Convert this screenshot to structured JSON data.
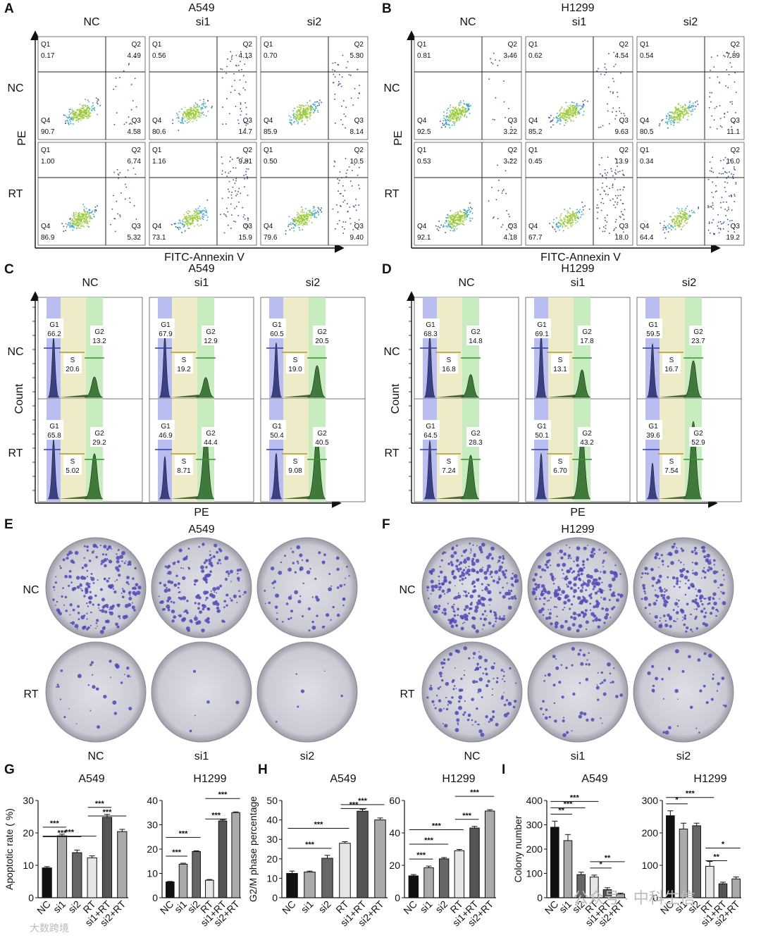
{
  "panel_letters": [
    "A",
    "B",
    "C",
    "D",
    "E",
    "F",
    "G",
    "H",
    "I"
  ],
  "cols": [
    "NC",
    "si1",
    "si2"
  ],
  "rows": [
    "NC",
    "RT"
  ],
  "cell_lines": [
    "A549",
    "H1299"
  ],
  "flow": {
    "x_label": "FITC-Annexin V",
    "y_label": "PE",
    "quadrant_names": [
      "Q1",
      "Q2",
      "Q3",
      "Q4"
    ],
    "A549": [
      [
        [
          "0.17",
          "4.49",
          "4.58",
          "90.7"
        ],
        [
          "0.56",
          "4.13",
          "14.7",
          "80.6"
        ],
        [
          "0.70",
          "5.30",
          "8.14",
          "85.9"
        ]
      ],
      [
        [
          "1.00",
          "6.74",
          "5.32",
          "86.9"
        ],
        [
          "1.16",
          "9.81",
          "15.9",
          "73.1"
        ],
        [
          "0.50",
          "10.5",
          "9.40",
          "79.6"
        ]
      ]
    ],
    "H1299": [
      [
        [
          "0.81",
          "3.46",
          "3.22",
          "92.5"
        ],
        [
          "0.62",
          "4.54",
          "9.63",
          "85.2"
        ],
        [
          "0.54",
          "7.89",
          "11.1",
          "80.5"
        ]
      ],
      [
        [
          "0.53",
          "3.22",
          "4.18",
          "92.1"
        ],
        [
          "0.45",
          "13.9",
          "18.0",
          "67.7"
        ],
        [
          "0.34",
          "16.0",
          "19.2",
          "64.4"
        ]
      ]
    ]
  },
  "cycle": {
    "x_label": "PE",
    "y_label": "Count",
    "phase_names": [
      "G1",
      "S",
      "G2"
    ],
    "A549": [
      [
        [
          "66.2",
          "20.6",
          "13.2"
        ],
        [
          "67.9",
          "19.2",
          "12.9"
        ],
        [
          "60.5",
          "19.0",
          "20.5"
        ]
      ],
      [
        [
          "65.8",
          "5.02",
          "29.2"
        ],
        [
          "46.9",
          "8.71",
          "44.4"
        ],
        [
          "50.4",
          "9.08",
          "40.5"
        ]
      ]
    ],
    "H1299": [
      [
        [
          "68.3",
          "16.8",
          "14.8"
        ],
        [
          "69.1",
          "13.1",
          "17.8"
        ],
        [
          "59.5",
          "16.7",
          "23.7"
        ]
      ],
      [
        [
          "64.5",
          "7.24",
          "28.3"
        ],
        [
          "50.1",
          "6.70",
          "43.2"
        ],
        [
          "39.6",
          "7.54",
          "52.9"
        ]
      ]
    ]
  },
  "colony": {
    "density": {
      "A549": [
        [
          0.7,
          0.55,
          0.25
        ],
        [
          0.1,
          0.02,
          0.02
        ]
      ],
      "H1299": [
        [
          0.9,
          0.85,
          0.7
        ],
        [
          0.4,
          0.2,
          0.12
        ]
      ]
    }
  },
  "chart_data": [
    {
      "panel": "G",
      "type": "bar",
      "title": "A549",
      "ylabel": "Apoptotic rate ( %)",
      "ylim": [
        0,
        30
      ],
      "yticks": [
        0,
        10,
        20,
        30
      ],
      "categories": [
        "NC",
        "si1",
        "si2",
        "RT",
        "si1+RT",
        "si2+RT"
      ],
      "values": [
        9.2,
        19.1,
        13.9,
        12.3,
        24.8,
        20.4
      ],
      "errors": [
        0.4,
        0.5,
        0.8,
        0.6,
        0.9,
        0.7
      ],
      "colors": [
        "#111111",
        "#aaaaaa",
        "#666666",
        "#e6e6e6",
        "#555555",
        "#aaaaaa"
      ],
      "significance": [
        "***",
        "***",
        "***",
        "***",
        "***"
      ]
    },
    {
      "panel": "G",
      "type": "bar",
      "title": "H1299",
      "ylabel": "",
      "ylim": [
        0,
        40
      ],
      "yticks": [
        0,
        10,
        20,
        30,
        40
      ],
      "categories": [
        "NC",
        "si1",
        "si2",
        "RT",
        "si1+RT",
        "si2+RT"
      ],
      "values": [
        6.5,
        13.8,
        19.0,
        7.2,
        31.6,
        35.0
      ],
      "errors": [
        0.2,
        0.4,
        0.3,
        0.3,
        0.5,
        0.3
      ],
      "colors": [
        "#111111",
        "#aaaaaa",
        "#666666",
        "#e6e6e6",
        "#555555",
        "#aaaaaa"
      ],
      "significance": [
        "***",
        "***",
        "***",
        "***"
      ]
    },
    {
      "panel": "H",
      "type": "bar",
      "title": "A549",
      "ylabel": "G2/M phase percentage",
      "ylim": [
        0,
        50
      ],
      "yticks": [
        0,
        10,
        20,
        30,
        40,
        50
      ],
      "categories": [
        "NC",
        "si1",
        "si2",
        "RT",
        "si1+RT",
        "si2+RT"
      ],
      "values": [
        12.5,
        13.2,
        20.3,
        28.0,
        44.5,
        40.0
      ],
      "errors": [
        1.2,
        0.5,
        1.5,
        0.8,
        1.0,
        1.0
      ],
      "colors": [
        "#111111",
        "#aaaaaa",
        "#666666",
        "#e6e6e6",
        "#555555",
        "#aaaaaa"
      ],
      "significance": [
        "***",
        "***",
        "***",
        "***"
      ]
    },
    {
      "panel": "H",
      "type": "bar",
      "title": "H1299",
      "ylabel": "",
      "ylim": [
        0,
        60
      ],
      "yticks": [
        0,
        20,
        40,
        60
      ],
      "categories": [
        "NC",
        "si1",
        "si2",
        "RT",
        "si1+RT",
        "si2+RT"
      ],
      "values": [
        13.5,
        18.5,
        24.0,
        29.0,
        43.0,
        53.5
      ],
      "errors": [
        0.8,
        1.0,
        0.8,
        0.8,
        1.0,
        0.8
      ],
      "colors": [
        "#111111",
        "#aaaaaa",
        "#666666",
        "#e6e6e6",
        "#555555",
        "#aaaaaa"
      ],
      "significance": [
        "***",
        "***",
        "***",
        "***",
        "***"
      ]
    },
    {
      "panel": "I",
      "type": "bar",
      "title": "A549",
      "ylabel": "Colony number",
      "ylim": [
        0,
        400
      ],
      "yticks": [
        0,
        100,
        200,
        300,
        400
      ],
      "categories": [
        "NC",
        "si1",
        "si2",
        "RT",
        "si1+RT",
        "si2+RT"
      ],
      "values": [
        290,
        235,
        95,
        85,
        33,
        15
      ],
      "errors": [
        25,
        25,
        10,
        8,
        8,
        4
      ],
      "colors": [
        "#111111",
        "#aaaaaa",
        "#666666",
        "#e6e6e6",
        "#555555",
        "#aaaaaa"
      ],
      "significance": [
        "**",
        "***",
        "***",
        "*",
        "**"
      ]
    },
    {
      "panel": "I",
      "type": "bar",
      "title": "H1299",
      "ylabel": "",
      "ylim": [
        0,
        300
      ],
      "yticks": [
        0,
        100,
        200,
        300
      ],
      "categories": [
        "NC",
        "si1",
        "si2",
        "RT",
        "si1+RT",
        "si2+RT"
      ],
      "values": [
        253,
        212,
        222,
        97,
        43,
        58
      ],
      "errors": [
        15,
        18,
        8,
        15,
        5,
        6
      ],
      "colors": [
        "#111111",
        "#aaaaaa",
        "#666666",
        "#e6e6e6",
        "#555555",
        "#aaaaaa"
      ],
      "significance": [
        "*",
        "***",
        "**",
        "*"
      ]
    }
  ],
  "watermark": "公众号 · 中科生信",
  "watermark2": "大数跨境"
}
